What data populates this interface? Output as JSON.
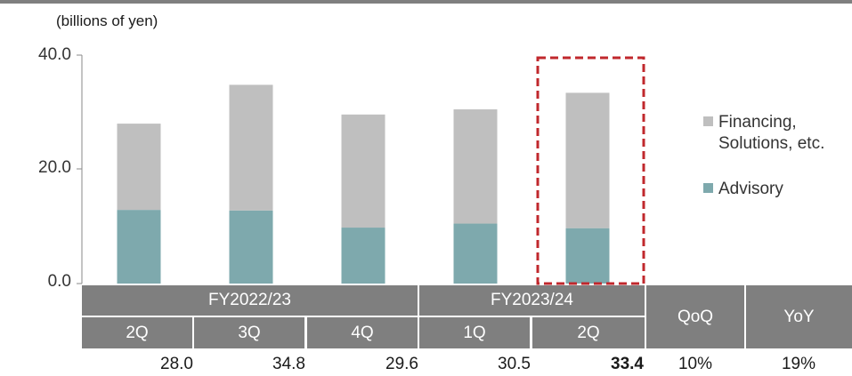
{
  "unit_label": "(billions of yen)",
  "legend": [
    {
      "line1": "Financing,",
      "line2": "Solutions, etc.",
      "color": "#bfbfbf"
    },
    {
      "line1": "Advisory",
      "line2": "",
      "color": "#7ea9ad"
    }
  ],
  "table": {
    "fiscal_years": [
      "FY2022/23",
      "FY2023/24"
    ],
    "qoq_label": "QoQ",
    "yoy_label": "YoY",
    "totals": [
      "28.0",
      "34.8",
      "29.6",
      "30.5",
      "33.4"
    ],
    "qoq": "10%",
    "yoy": "19%"
  },
  "chart_data": {
    "type": "bar",
    "stacked": true,
    "categories": [
      "2Q",
      "3Q",
      "4Q",
      "1Q",
      "2Q"
    ],
    "series": [
      {
        "name": "Advisory",
        "values": [
          12.9,
          12.8,
          9.8,
          10.5,
          9.7
        ],
        "color": "#7ea9ad"
      },
      {
        "name": "Financing, Solutions, etc.",
        "values": [
          15.1,
          22.0,
          19.8,
          20.0,
          23.7
        ],
        "color": "#bfbfbf"
      }
    ],
    "totals": [
      28.0,
      34.8,
      29.6,
      30.5,
      33.4
    ],
    "ylim": [
      0,
      40
    ],
    "yticks": [
      "0.0",
      "20.0",
      "40.0"
    ],
    "highlight_index": 4,
    "highlight_color": "#c0282d"
  }
}
